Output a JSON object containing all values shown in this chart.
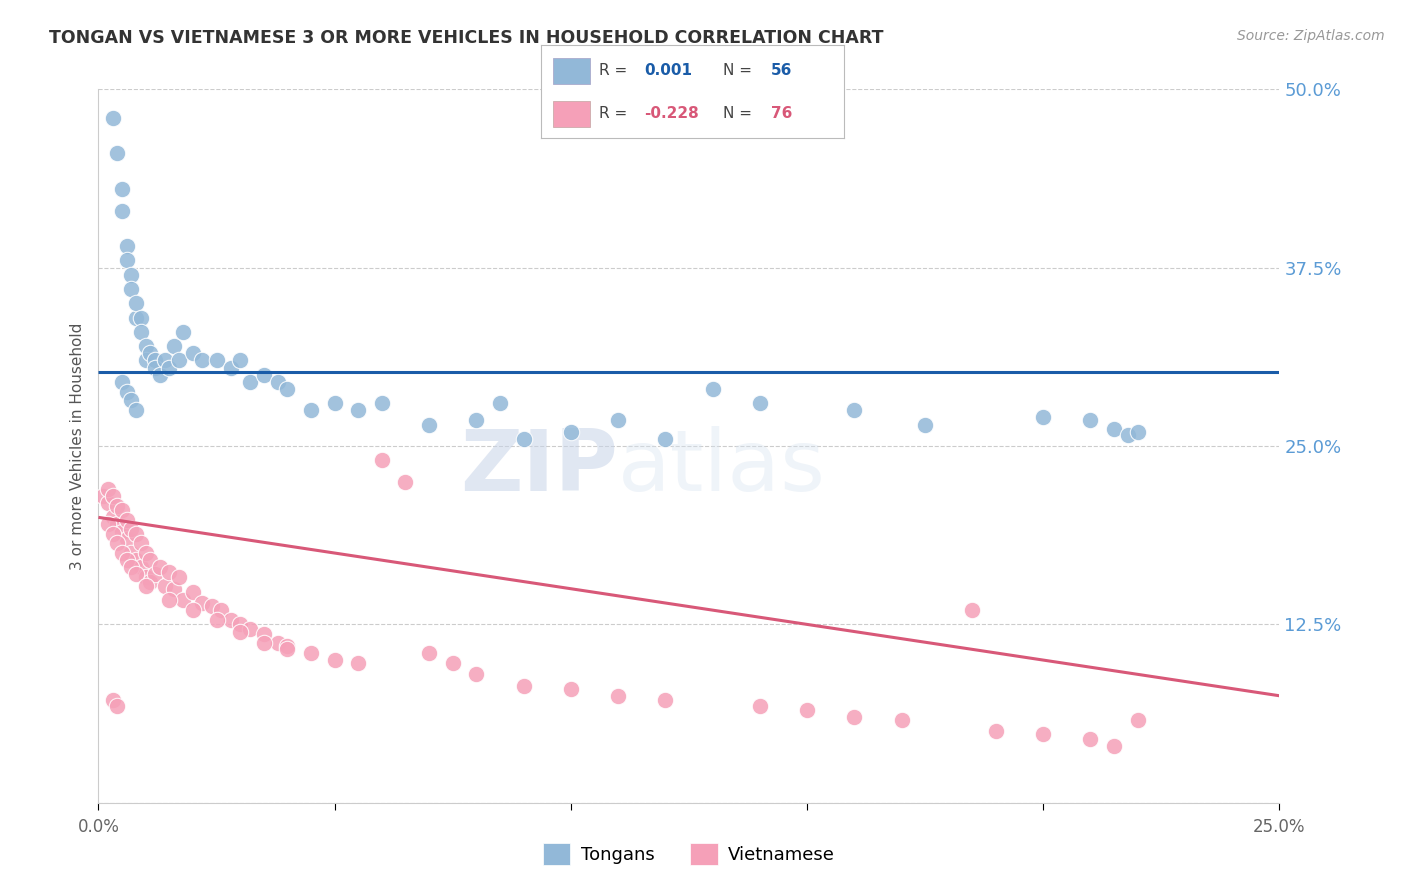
{
  "title": "TONGAN VS VIETNAMESE 3 OR MORE VEHICLES IN HOUSEHOLD CORRELATION CHART",
  "source": "Source: ZipAtlas.com",
  "ylabel": "3 or more Vehicles in Household",
  "xlim": [
    0.0,
    0.25
  ],
  "ylim": [
    0.0,
    0.5
  ],
  "right_yticks": [
    0.0,
    0.125,
    0.25,
    0.375,
    0.5
  ],
  "right_ytick_labels": [
    "",
    "12.5%",
    "25.0%",
    "37.5%",
    "50.0%"
  ],
  "blue_color": "#92b8d8",
  "pink_color": "#f5a0b8",
  "blue_line_color": "#1a5ca8",
  "pink_line_color": "#d85878",
  "legend_blue": "Tongans",
  "legend_pink": "Vietnamese",
  "watermark_zip": "ZIP",
  "watermark_atlas": "atlas",
  "bg_color": "#ffffff",
  "grid_color": "#cccccc",
  "right_label_color": "#5b9bd5",
  "title_color": "#333333",
  "source_color": "#999999",
  "blue_x": [
    0.003,
    0.004,
    0.005,
    0.005,
    0.006,
    0.006,
    0.007,
    0.007,
    0.008,
    0.008,
    0.009,
    0.009,
    0.01,
    0.01,
    0.011,
    0.012,
    0.012,
    0.013,
    0.014,
    0.015,
    0.016,
    0.017,
    0.018,
    0.02,
    0.022,
    0.025,
    0.028,
    0.03,
    0.032,
    0.035,
    0.038,
    0.04,
    0.045,
    0.05,
    0.055,
    0.06,
    0.07,
    0.08,
    0.085,
    0.09,
    0.1,
    0.11,
    0.12,
    0.13,
    0.14,
    0.16,
    0.175,
    0.2,
    0.21,
    0.215,
    0.218,
    0.22,
    0.005,
    0.006,
    0.007,
    0.008
  ],
  "blue_y": [
    0.48,
    0.455,
    0.43,
    0.415,
    0.39,
    0.38,
    0.37,
    0.36,
    0.34,
    0.35,
    0.34,
    0.33,
    0.32,
    0.31,
    0.315,
    0.31,
    0.305,
    0.3,
    0.31,
    0.305,
    0.32,
    0.31,
    0.33,
    0.315,
    0.31,
    0.31,
    0.305,
    0.31,
    0.295,
    0.3,
    0.295,
    0.29,
    0.275,
    0.28,
    0.275,
    0.28,
    0.265,
    0.268,
    0.28,
    0.255,
    0.26,
    0.268,
    0.255,
    0.29,
    0.28,
    0.275,
    0.265,
    0.27,
    0.268,
    0.262,
    0.258,
    0.26,
    0.295,
    0.288,
    0.282,
    0.275
  ],
  "pink_x": [
    0.001,
    0.002,
    0.002,
    0.003,
    0.003,
    0.004,
    0.004,
    0.005,
    0.005,
    0.006,
    0.006,
    0.007,
    0.007,
    0.008,
    0.008,
    0.009,
    0.009,
    0.01,
    0.01,
    0.011,
    0.011,
    0.012,
    0.013,
    0.014,
    0.015,
    0.016,
    0.017,
    0.018,
    0.02,
    0.022,
    0.024,
    0.026,
    0.028,
    0.03,
    0.032,
    0.035,
    0.038,
    0.04,
    0.045,
    0.05,
    0.055,
    0.06,
    0.065,
    0.07,
    0.075,
    0.08,
    0.09,
    0.1,
    0.11,
    0.12,
    0.14,
    0.15,
    0.16,
    0.17,
    0.185,
    0.19,
    0.2,
    0.21,
    0.215,
    0.22,
    0.002,
    0.003,
    0.004,
    0.005,
    0.006,
    0.007,
    0.008,
    0.01,
    0.015,
    0.02,
    0.025,
    0.03,
    0.035,
    0.04,
    0.003,
    0.004
  ],
  "pink_y": [
    0.215,
    0.21,
    0.22,
    0.2,
    0.215,
    0.195,
    0.208,
    0.19,
    0.205,
    0.185,
    0.198,
    0.175,
    0.192,
    0.17,
    0.188,
    0.165,
    0.182,
    0.158,
    0.175,
    0.155,
    0.17,
    0.16,
    0.165,
    0.152,
    0.162,
    0.15,
    0.158,
    0.142,
    0.148,
    0.14,
    0.138,
    0.135,
    0.128,
    0.125,
    0.122,
    0.118,
    0.112,
    0.11,
    0.105,
    0.1,
    0.098,
    0.24,
    0.225,
    0.105,
    0.098,
    0.09,
    0.082,
    0.08,
    0.075,
    0.072,
    0.068,
    0.065,
    0.06,
    0.058,
    0.135,
    0.05,
    0.048,
    0.045,
    0.04,
    0.058,
    0.195,
    0.188,
    0.182,
    0.175,
    0.17,
    0.165,
    0.16,
    0.152,
    0.142,
    0.135,
    0.128,
    0.12,
    0.112,
    0.108,
    0.072,
    0.068
  ]
}
